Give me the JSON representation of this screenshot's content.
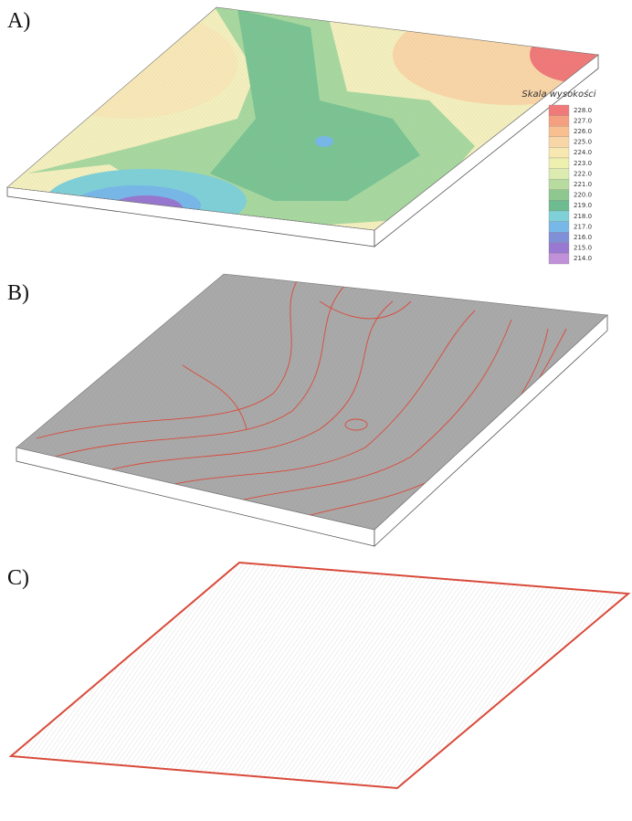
{
  "panels": [
    {
      "label": "A)"
    },
    {
      "label": "B)"
    },
    {
      "label": "C)"
    }
  ],
  "legend": {
    "title": "Skala wysokości",
    "items": [
      {
        "label": "228.0",
        "color": "#f07a7a"
      },
      {
        "label": "227.0",
        "color": "#f4a080"
      },
      {
        "label": "226.0",
        "color": "#f8c090"
      },
      {
        "label": "225.0",
        "color": "#f9d6a8"
      },
      {
        "label": "224.0",
        "color": "#f6e8b0"
      },
      {
        "label": "223.0",
        "color": "#eef0b0"
      },
      {
        "label": "222.0",
        "color": "#dcecb0"
      },
      {
        "label": "221.0",
        "color": "#b8dca0"
      },
      {
        "label": "220.0",
        "color": "#8ec890"
      },
      {
        "label": "219.0",
        "color": "#6cbc90"
      },
      {
        "label": "218.0",
        "color": "#80d0d8"
      },
      {
        "label": "217.0",
        "color": "#78b8e8"
      },
      {
        "label": "216.0",
        "color": "#8090d8"
      },
      {
        "label": "215.0",
        "color": "#9878d0"
      },
      {
        "label": "214.0",
        "color": "#c090d8"
      }
    ]
  }
}
